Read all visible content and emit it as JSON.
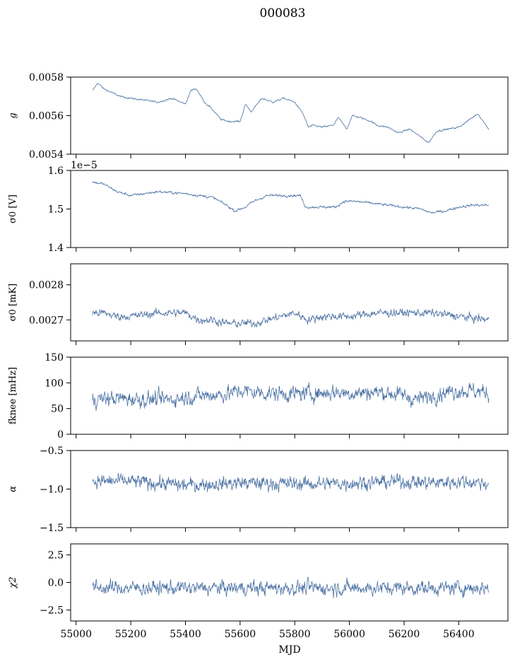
{
  "figure": {
    "title": "000083",
    "xlabel": "MJD",
    "series_color": "#4c72a4"
  },
  "chart_data": [
    {
      "type": "line",
      "ylabel": "g",
      "ylabel_style": "italic",
      "xlim": [
        54980,
        56580
      ],
      "ylim": [
        0.0054,
        0.0058
      ],
      "yticks": [
        0.0054,
        0.0056,
        0.0058
      ],
      "ytick_labels": [
        "0.0054",
        "0.0056",
        "0.0058"
      ],
      "offset_text": "",
      "show_xticklabels": false,
      "x": [
        55060,
        55080,
        55100,
        55130,
        55160,
        55200,
        55250,
        55300,
        55350,
        55400,
        55420,
        55440,
        55470,
        55500,
        55530,
        55560,
        55600,
        55620,
        55640,
        55680,
        55720,
        55760,
        55800,
        55830,
        55850,
        55870,
        55900,
        55940,
        55960,
        55990,
        56010,
        56040,
        56080,
        56100,
        56140,
        56180,
        56220,
        56260,
        56290,
        56320,
        56360,
        56400,
        56440,
        56470,
        56510
      ],
      "y": [
        0.00573,
        0.00577,
        0.00574,
        0.00572,
        0.0057,
        0.00569,
        0.00568,
        0.00567,
        0.00569,
        0.00566,
        0.00573,
        0.00574,
        0.00567,
        0.00563,
        0.00558,
        0.00557,
        0.00557,
        0.00566,
        0.00562,
        0.00569,
        0.00567,
        0.00569,
        0.00567,
        0.00561,
        0.00554,
        0.00555,
        0.00554,
        0.00555,
        0.00559,
        0.00553,
        0.0056,
        0.00559,
        0.00557,
        0.00555,
        0.00554,
        0.00551,
        0.00553,
        0.00549,
        0.00546,
        0.00552,
        0.00553,
        0.00554,
        0.00558,
        0.00561,
        0.00553
      ],
      "noise": 6e-06
    },
    {
      "type": "line",
      "ylabel": "σ0 [V]",
      "xlim": [
        54980,
        56580
      ],
      "ylim": [
        1.4e-05,
        1.6e-05
      ],
      "yticks": [
        1.4e-05,
        1.5e-05,
        1.6e-05
      ],
      "ytick_labels": [
        "1.4",
        "1.5",
        "1.6"
      ],
      "offset_text": "1e−5",
      "show_xticklabels": false,
      "x": [
        55060,
        55100,
        55150,
        55200,
        55300,
        55400,
        55450,
        55500,
        55550,
        55580,
        55620,
        55650,
        55700,
        55750,
        55820,
        55840,
        55880,
        55950,
        55980,
        56020,
        56080,
        56140,
        56200,
        56260,
        56300,
        56350,
        56400,
        56450,
        56510
      ],
      "y": [
        1.57e-05,
        1.565e-05,
        1.545e-05,
        1.535e-05,
        1.545e-05,
        1.54e-05,
        1.535e-05,
        1.53e-05,
        1.51e-05,
        1.495e-05,
        1.505e-05,
        1.52e-05,
        1.535e-05,
        1.535e-05,
        1.535e-05,
        1.505e-05,
        1.505e-05,
        1.505e-05,
        1.52e-05,
        1.52e-05,
        1.515e-05,
        1.51e-05,
        1.505e-05,
        1.5e-05,
        1.49e-05,
        1.495e-05,
        1.505e-05,
        1.51e-05,
        1.51e-05
      ],
      "noise": 4.5e-08
    },
    {
      "type": "line",
      "ylabel": "σ0 [mK]",
      "xlim": [
        54980,
        56580
      ],
      "ylim": [
        0.00264,
        0.00286
      ],
      "yticks": [
        0.0027,
        0.0028
      ],
      "ytick_labels": [
        "0.0027",
        "0.0028"
      ],
      "offset_text": "",
      "show_xticklabels": false,
      "x": [
        55060,
        55100,
        55150,
        55200,
        55300,
        55400,
        55450,
        55500,
        55550,
        55600,
        55650,
        55700,
        55800,
        55850,
        55900,
        56000,
        56100,
        56200,
        56300,
        56400,
        56510
      ],
      "y": [
        0.00272,
        0.00272,
        0.00271,
        0.00271,
        0.00272,
        0.00272,
        0.0027,
        0.0027,
        0.00269,
        0.00269,
        0.00269,
        0.0027,
        0.00272,
        0.0027,
        0.00271,
        0.00271,
        0.00272,
        0.00272,
        0.00272,
        0.00271,
        0.0027
      ],
      "noise": 1.5e-05
    },
    {
      "type": "line",
      "ylabel": "fknee [mHz]",
      "xlim": [
        54980,
        56580
      ],
      "ylim": [
        0,
        150
      ],
      "yticks": [
        0,
        50,
        100,
        150
      ],
      "ytick_labels": [
        "0",
        "50",
        "100",
        "150"
      ],
      "offset_text": "",
      "show_xticklabels": false,
      "x": [
        55060,
        55150,
        55250,
        55350,
        55400,
        55450,
        55550,
        55600,
        55650,
        55700,
        55800,
        55850,
        55900,
        55950,
        56000,
        56100,
        56150,
        56200,
        56240,
        56280,
        56300,
        56350,
        56400,
        56450,
        56510
      ],
      "y": [
        68,
        70,
        68,
        68,
        72,
        75,
        78,
        85,
        82,
        80,
        78,
        80,
        80,
        82,
        80,
        82,
        80,
        75,
        68,
        72,
        75,
        82,
        85,
        85,
        80
      ],
      "noise": 20
    },
    {
      "type": "line",
      "ylabel": "α",
      "ylabel_style": "italic",
      "xlim": [
        54980,
        56580
      ],
      "ylim": [
        -1.5,
        -0.5
      ],
      "yticks": [
        -1.5,
        -1.0,
        -0.5
      ],
      "ytick_labels": [
        "−1.5",
        "−1.0",
        "−0.5"
      ],
      "offset_text": "",
      "show_xticklabels": false,
      "x": [
        55060,
        55200,
        55400,
        55600,
        55800,
        55900,
        56000,
        56200,
        56300,
        56400,
        56510
      ],
      "y": [
        -0.9,
        -0.9,
        -0.95,
        -0.92,
        -0.93,
        -0.93,
        -0.92,
        -0.9,
        -0.92,
        -0.9,
        -0.92
      ],
      "noise": 0.12
    },
    {
      "type": "line",
      "ylabel": "χ2",
      "ylabel_style": "italic",
      "xlim": [
        54980,
        56580
      ],
      "ylim": [
        -3.5,
        3.5
      ],
      "yticks": [
        -2.5,
        0.0,
        2.5
      ],
      "ytick_labels": [
        "−2.5",
        "0.0",
        "2.5"
      ],
      "offset_text": "",
      "show_xticklabels": true,
      "xticks": [
        55000,
        55200,
        55400,
        55600,
        55800,
        56000,
        56200,
        56400
      ],
      "xtick_labels": [
        "55000",
        "55200",
        "55400",
        "55600",
        "55800",
        "56000",
        "56200",
        "56400"
      ],
      "x": [
        55060,
        55300,
        55600,
        55900,
        56200,
        56510
      ],
      "y": [
        -0.5,
        -0.5,
        -0.5,
        -0.5,
        -0.5,
        -0.5
      ],
      "noise": 0.85
    }
  ]
}
